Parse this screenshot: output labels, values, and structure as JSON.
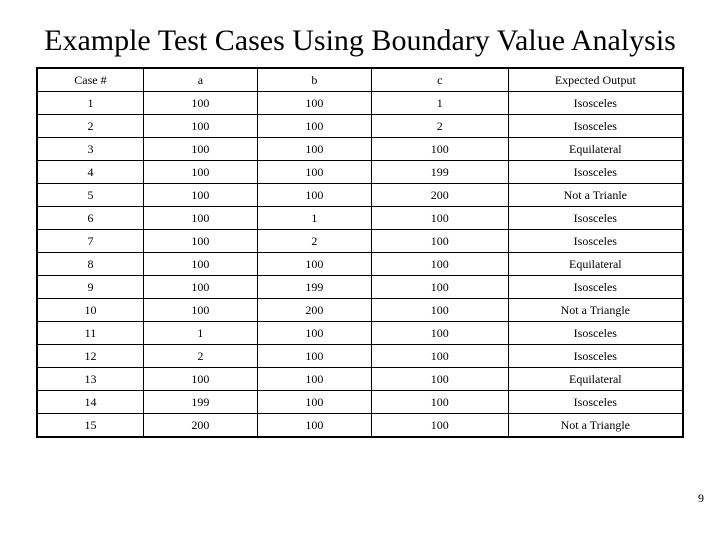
{
  "title": "Example Test Cases Using Boundary Value Analysis",
  "page_number": "9",
  "background_color": "#ffffff",
  "text_color": "#000000",
  "border_color": "#000000",
  "title_fontsize": 30,
  "cell_fontsize": 12,
  "font_family": "Times New Roman",
  "table": {
    "columns": [
      "Case #",
      "a",
      "b",
      "c",
      "Expected Output"
    ],
    "column_widths_pct": [
      14,
      15,
      15,
      18,
      23
    ],
    "rows": [
      [
        "1",
        "100",
        "100",
        "1",
        "Isosceles"
      ],
      [
        "2",
        "100",
        "100",
        "2",
        "Isosceles"
      ],
      [
        "3",
        "100",
        "100",
        "100",
        "Equilateral"
      ],
      [
        "4",
        "100",
        "100",
        "199",
        "Isosceles"
      ],
      [
        "5",
        "100",
        "100",
        "200",
        "Not a Trianle"
      ],
      [
        "6",
        "100",
        "1",
        "100",
        "Isosceles"
      ],
      [
        "7",
        "100",
        "2",
        "100",
        "Isosceles"
      ],
      [
        "8",
        "100",
        "100",
        "100",
        "Equilateral"
      ],
      [
        "9",
        "100",
        "199",
        "100",
        "Isosceles"
      ],
      [
        "10",
        "100",
        "200",
        "100",
        "Not a Triangle"
      ],
      [
        "11",
        "1",
        "100",
        "100",
        "Isosceles"
      ],
      [
        "12",
        "2",
        "100",
        "100",
        "Isosceles"
      ],
      [
        "13",
        "100",
        "100",
        "100",
        "Equilateral"
      ],
      [
        "14",
        "199",
        "100",
        "100",
        "Isosceles"
      ],
      [
        "15",
        "200",
        "100",
        "100",
        "Not a Triangle"
      ]
    ]
  }
}
